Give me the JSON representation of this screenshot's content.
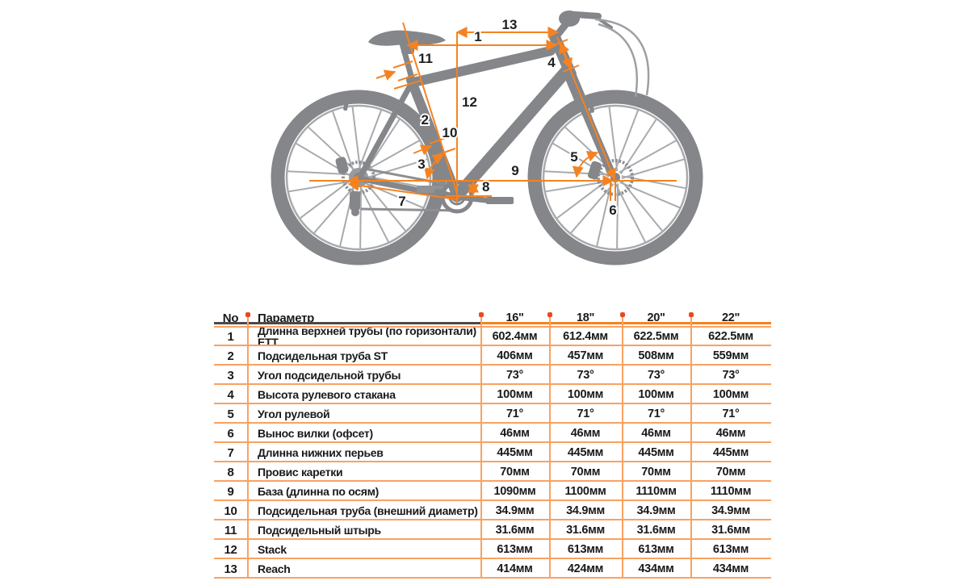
{
  "diagram": {
    "labels": [
      "1",
      "2",
      "3",
      "4",
      "5",
      "6",
      "7",
      "8",
      "9",
      "10",
      "11",
      "12",
      "13"
    ],
    "colors": {
      "annotation_orange": "#F58220",
      "bike_gray": "#84868A",
      "spoke_gray": "#A8AAAD"
    }
  },
  "table": {
    "header": {
      "no": "No",
      "param": "Параметр",
      "sizes": [
        "16\"",
        "18\"",
        "20\"",
        "22\""
      ]
    },
    "rows": [
      {
        "no": "1",
        "param": "Длинна верхней трубы (по горизонтали) ETT",
        "v": [
          "602.4мм",
          "612.4мм",
          "622.5мм",
          "622.5мм"
        ]
      },
      {
        "no": "2",
        "param": "Подсидельная труба ST",
        "v": [
          "406мм",
          "457мм",
          "508мм",
          "559мм"
        ]
      },
      {
        "no": "3",
        "param": "Угол подсидельной трубы",
        "v": [
          "73°",
          "73°",
          "73°",
          "73°"
        ]
      },
      {
        "no": "4",
        "param": "Высота рулевого стакана",
        "v": [
          "100мм",
          "100мм",
          "100мм",
          "100мм"
        ]
      },
      {
        "no": "5",
        "param": "Угол рулевой",
        "v": [
          "71°",
          "71°",
          "71°",
          "71°"
        ]
      },
      {
        "no": "6",
        "param": "Вынос вилки (офсет)",
        "v": [
          "46мм",
          "46мм",
          "46мм",
          "46мм"
        ]
      },
      {
        "no": "7",
        "param": "Длинна нижних перьев",
        "v": [
          "445мм",
          "445мм",
          "445мм",
          "445мм"
        ]
      },
      {
        "no": "8",
        "param": "Провис каретки",
        "v": [
          "70мм",
          "70мм",
          "70мм",
          "70мм"
        ]
      },
      {
        "no": "9",
        "param": "База (длинна по осям)",
        "v": [
          "1090мм",
          "1100мм",
          "1110мм",
          "1110мм"
        ]
      },
      {
        "no": "10",
        "param": "Подсидельная труба (внешний диаметр)",
        "v": [
          "34.9мм",
          "34.9мм",
          "34.9мм",
          "34.9мм"
        ]
      },
      {
        "no": "11",
        "param": "Подсидельный штырь",
        "v": [
          "31.6мм",
          "31.6мм",
          "31.6мм",
          "31.6мм"
        ]
      },
      {
        "no": "12",
        "param": "Stack",
        "v": [
          "613мм",
          "613мм",
          "613мм",
          "613мм"
        ]
      },
      {
        "no": "13",
        "param": "Reach",
        "v": [
          "414мм",
          "424мм",
          "434мм",
          "434мм"
        ]
      }
    ],
    "grid_colors": {
      "line": "#F8A262",
      "dot": "#E8491F",
      "dark_rule": "#4A4A4C"
    }
  }
}
